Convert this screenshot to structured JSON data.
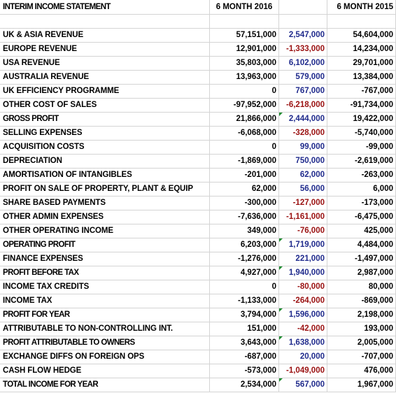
{
  "header": {
    "title": "INTERIM INCOME STATEMENT",
    "col_2016": "6 MONTH 2016",
    "col_diff": "",
    "col_2015": "6 MONTH 2015"
  },
  "rows": [
    {
      "label": "UK & ASIA REVENUE",
      "y2016": "57,151,000",
      "diff": "2,547,000",
      "y2015": "54,604,000",
      "sign": "pos",
      "major": false
    },
    {
      "label": "EUROPE REVENUE",
      "y2016": "12,901,000",
      "diff": "-1,333,000",
      "y2015": "14,234,000",
      "sign": "neg",
      "major": false
    },
    {
      "label": "USA REVENUE",
      "y2016": "35,803,000",
      "diff": "6,102,000",
      "y2015": "29,701,000",
      "sign": "pos",
      "major": false
    },
    {
      "label": "AUSTRALIA REVENUE",
      "y2016": "13,963,000",
      "diff": "579,000",
      "y2015": "13,384,000",
      "sign": "pos",
      "major": false
    },
    {
      "label": "UK EFFICIENCY PROGRAMME",
      "y2016": "0",
      "diff": "767,000",
      "y2015": "-767,000",
      "sign": "pos",
      "major": false
    },
    {
      "label": "OTHER COST OF SALES",
      "y2016": "-97,952,000",
      "diff": "-6,218,000",
      "y2015": "-91,734,000",
      "sign": "neg",
      "major": false
    },
    {
      "label": "GROSS PROFIT",
      "y2016": "21,866,000",
      "diff": "2,444,000",
      "y2015": "19,422,000",
      "sign": "pos",
      "major": true
    },
    {
      "label": "SELLING EXPENSES",
      "y2016": "-6,068,000",
      "diff": "-328,000",
      "y2015": "-5,740,000",
      "sign": "neg",
      "major": false
    },
    {
      "label": "ACQUISITION COSTS",
      "y2016": "0",
      "diff": "99,000",
      "y2015": "-99,000",
      "sign": "pos",
      "major": false
    },
    {
      "label": "DEPRECIATION",
      "y2016": "-1,869,000",
      "diff": "750,000",
      "y2015": "-2,619,000",
      "sign": "pos",
      "major": false
    },
    {
      "label": "AMORTISATION OF INTANGIBLES",
      "y2016": "-201,000",
      "diff": "62,000",
      "y2015": "-263,000",
      "sign": "pos",
      "major": false
    },
    {
      "label": "PROFIT ON SALE OF PROPERTY, PLANT & EQUIP",
      "y2016": "62,000",
      "diff": "56,000",
      "y2015": "6,000",
      "sign": "pos",
      "major": false
    },
    {
      "label": "SHARE BASED PAYMENTS",
      "y2016": "-300,000",
      "diff": "-127,000",
      "y2015": "-173,000",
      "sign": "neg",
      "major": false
    },
    {
      "label": "OTHER ADMIN EXPENSES",
      "y2016": "-7,636,000",
      "diff": "-1,161,000",
      "y2015": "-6,475,000",
      "sign": "neg",
      "major": false
    },
    {
      "label": "OTHER OPERATING INCOME",
      "y2016": "349,000",
      "diff": "-76,000",
      "y2015": "425,000",
      "sign": "neg",
      "major": false
    },
    {
      "label": "OPERATING PROFIT",
      "y2016": "6,203,000",
      "diff": "1,719,000",
      "y2015": "4,484,000",
      "sign": "pos",
      "major": true
    },
    {
      "label": "FINANCE EXPENSES",
      "y2016": "-1,276,000",
      "diff": "221,000",
      "y2015": "-1,497,000",
      "sign": "pos",
      "major": false
    },
    {
      "label": "PROFIT BEFORE TAX",
      "y2016": "4,927,000",
      "diff": "1,940,000",
      "y2015": "2,987,000",
      "sign": "pos",
      "major": true
    },
    {
      "label": "INCOME TAX CREDITS",
      "y2016": "0",
      "diff": "-80,000",
      "y2015": "80,000",
      "sign": "neg",
      "major": false
    },
    {
      "label": "INCOME TAX",
      "y2016": "-1,133,000",
      "diff": "-264,000",
      "y2015": "-869,000",
      "sign": "neg",
      "major": false
    },
    {
      "label": "PROFIT FOR YEAR",
      "y2016": "3,794,000",
      "diff": "1,596,000",
      "y2015": "2,198,000",
      "sign": "pos",
      "major": true
    },
    {
      "label": "ATTRIBUTABLE TO NON-CONTROLLING INT.",
      "y2016": "151,000",
      "diff": "-42,000",
      "y2015": "193,000",
      "sign": "neg",
      "major": false
    },
    {
      "label": "PROFIT ATTRIBUTABLE TO OWNERS",
      "y2016": "3,643,000",
      "diff": "1,638,000",
      "y2015": "2,005,000",
      "sign": "pos",
      "major": true
    },
    {
      "label": "EXCHANGE DIFFS ON FOREIGN OPS",
      "y2016": "-687,000",
      "diff": "20,000",
      "y2015": "-707,000",
      "sign": "pos",
      "major": false
    },
    {
      "label": "CASH FLOW HEDGE",
      "y2016": "-573,000",
      "diff": "-1,049,000",
      "y2015": "476,000",
      "sign": "neg",
      "major": false
    },
    {
      "label": "TOTAL INCOME FOR YEAR",
      "y2016": "2,534,000",
      "diff": "567,000",
      "y2015": "1,967,000",
      "sign": "pos",
      "major": true
    }
  ],
  "colors": {
    "positive_diff": "#1f2a8c",
    "negative_diff": "#9a1010",
    "formula_indicator": "#1e8c30",
    "gridline": "#d4d4d4"
  }
}
